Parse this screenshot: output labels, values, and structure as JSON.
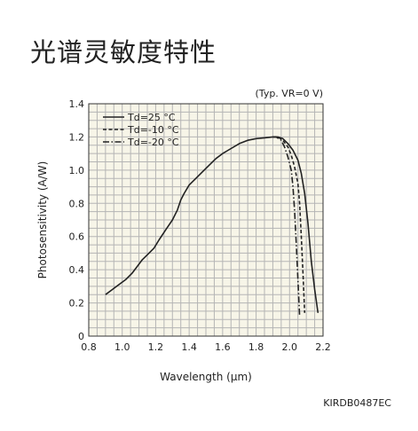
{
  "page": {
    "title": "光谱灵敏度特性"
  },
  "chart_data": {
    "type": "line",
    "title": "",
    "condition": "(Typ. VR=0 V)",
    "xlabel": "Wavelength (μm)",
    "ylabel": "Photosensitivity (A/W)",
    "xlim": [
      0.8,
      2.2
    ],
    "ylim": [
      0,
      1.4
    ],
    "x_ticks": [
      "0.8",
      "1.0",
      "1.2",
      "1.4",
      "1.6",
      "1.8",
      "2.0",
      "2.2"
    ],
    "y_ticks": [
      "0",
      "0.2",
      "0.4",
      "0.6",
      "0.8",
      "1.0",
      "1.2",
      "1.4"
    ],
    "grid": true,
    "legend_position": "top-left",
    "series": [
      {
        "name": "Td=25 °C",
        "line_style": "solid",
        "x": [
          0.9,
          0.94,
          0.98,
          1.02,
          1.06,
          1.09,
          1.12,
          1.16,
          1.19,
          1.22,
          1.26,
          1.3,
          1.33,
          1.35,
          1.37,
          1.4,
          1.44,
          1.48,
          1.52,
          1.56,
          1.6,
          1.65,
          1.7,
          1.75,
          1.8,
          1.85,
          1.9,
          1.93,
          1.96,
          1.99,
          2.02,
          2.05,
          2.07,
          2.09,
          2.11,
          2.13,
          2.15,
          2.17
        ],
        "y": [
          0.25,
          0.28,
          0.31,
          0.34,
          0.38,
          0.42,
          0.46,
          0.5,
          0.53,
          0.58,
          0.64,
          0.7,
          0.76,
          0.82,
          0.86,
          0.91,
          0.95,
          0.99,
          1.03,
          1.07,
          1.1,
          1.13,
          1.16,
          1.18,
          1.19,
          1.195,
          1.2,
          1.2,
          1.19,
          1.16,
          1.12,
          1.06,
          0.98,
          0.86,
          0.68,
          0.45,
          0.28,
          0.14
        ]
      },
      {
        "name": "Td=-10 °C",
        "line_style": "dashed",
        "x": [
          1.9,
          1.93,
          1.96,
          1.99,
          2.01,
          2.03,
          2.05,
          2.06,
          2.07,
          2.08,
          2.09
        ],
        "y": [
          1.2,
          1.2,
          1.18,
          1.14,
          1.09,
          1.02,
          0.92,
          0.8,
          0.6,
          0.38,
          0.14
        ]
      },
      {
        "name": "Td=-20 °C",
        "line_style": "dash-dot",
        "x": [
          1.9,
          1.92,
          1.95,
          1.97,
          1.99,
          2.01,
          2.02,
          2.03,
          2.04,
          2.05,
          2.06
        ],
        "y": [
          1.2,
          1.2,
          1.18,
          1.14,
          1.08,
          1.0,
          0.9,
          0.76,
          0.56,
          0.34,
          0.12
        ]
      }
    ]
  },
  "footer": {
    "code": "KIRDB0487EC"
  }
}
